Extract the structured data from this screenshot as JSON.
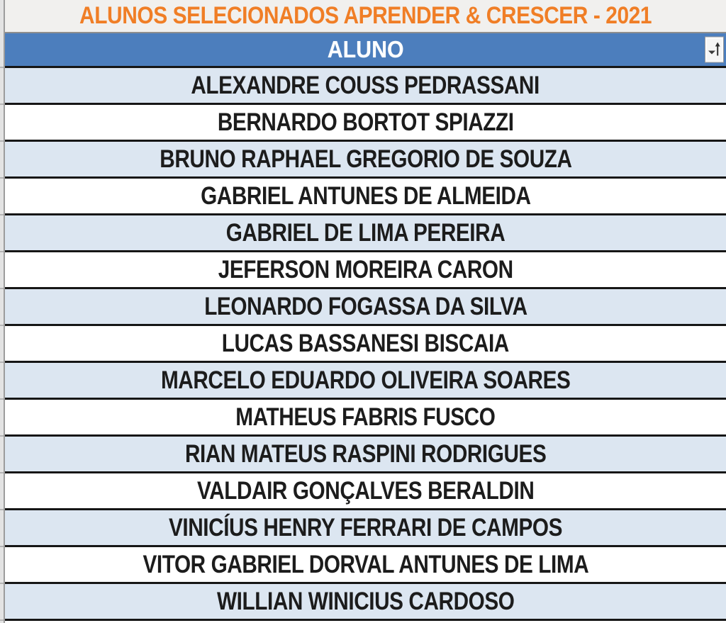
{
  "banner": {
    "title": "ALUNOS SELECIONADOS APRENDER & CRESCER - 2021"
  },
  "table": {
    "column_header": "ALUNO",
    "filter_icon": "sort-ascending-filter-icon",
    "rows": [
      "ALEXANDRE COUSS PEDRASSANI",
      "BERNARDO BORTOT SPIAZZI",
      "BRUNO RAPHAEL GREGORIO DE SOUZA",
      "GABRIEL ANTUNES DE ALMEIDA",
      "GABRIEL DE LIMA PEREIRA",
      "JEFERSON MOREIRA CARON",
      "LEONARDO FOGASSA DA SILVA",
      "LUCAS BASSANESI BISCAIA",
      "MARCELO EDUARDO OLIVEIRA SOARES",
      "MATHEUS FABRIS FUSCO",
      "RIAN MATEUS RASPINI RODRIGUES",
      "VALDAIR GONÇALVES BERALDIN",
      "VINICÍUS HENRY FERRARI DE CAMPOS",
      "VITOR GABRIEL DORVAL ANTUNES DE LIMA",
      "WILLIAN WINICIUS CARDOSO"
    ]
  },
  "colors": {
    "banner_text": "#F07E26",
    "banner_bg": "#F1F0EE",
    "banner_border": "#8E8E8E",
    "header_bg": "#4C7EBD",
    "header_text": "#FFFFFF",
    "row_bg": "#FFFFFF",
    "row_alt_bg": "#DCE6F1",
    "row_text": "#1C1C1C",
    "row_border": "#161616",
    "strip_bg": "#E3E3E3",
    "strip_line": "#9C9C9C",
    "strip_grid": "#B5B5B5"
  }
}
